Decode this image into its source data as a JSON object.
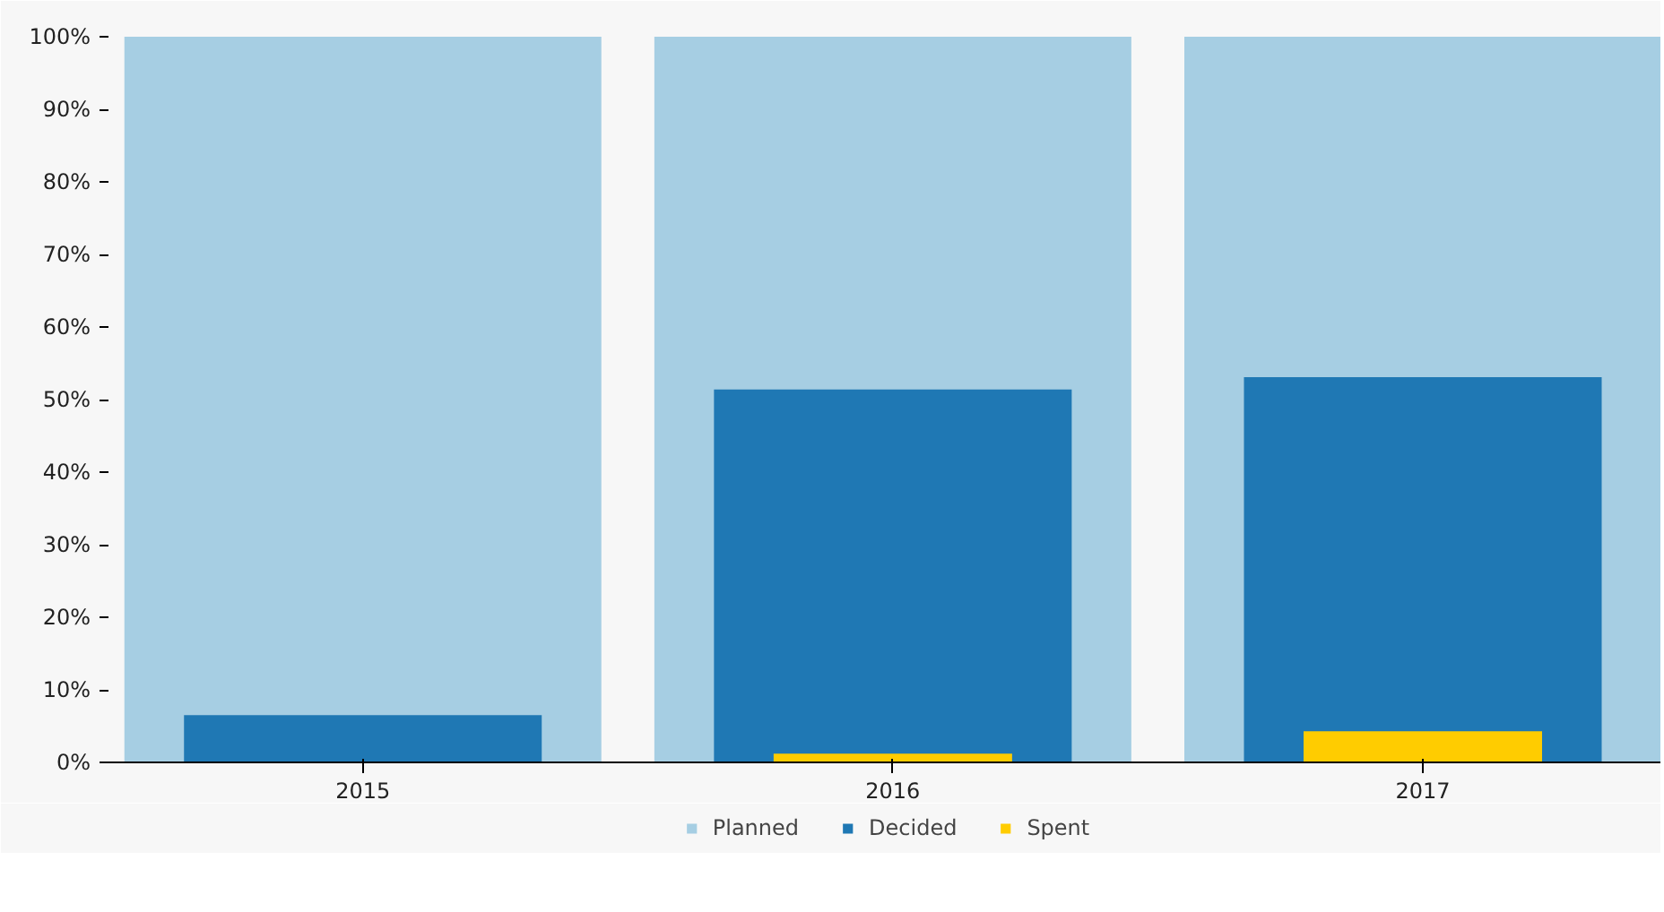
{
  "chart_data": {
    "type": "bar",
    "categories": [
      "2015",
      "2016",
      "2017"
    ],
    "series": [
      {
        "name": "Planned",
        "color": "#a6cee3",
        "values": [
          100,
          100,
          100
        ]
      },
      {
        "name": "Decided",
        "color": "#1f78b4",
        "values": [
          6.5,
          51.4,
          53.1
        ]
      },
      {
        "name": "Spent",
        "color": "#ffcc00",
        "values": [
          0,
          1.2,
          4.3
        ]
      }
    ],
    "ylim": [
      0,
      100
    ],
    "yticks": [
      {
        "value": 0,
        "label": "0%"
      },
      {
        "value": 10,
        "label": "10%"
      },
      {
        "value": 20,
        "label": "20%"
      },
      {
        "value": 30,
        "label": "30%"
      },
      {
        "value": 40,
        "label": "40%"
      },
      {
        "value": 50,
        "label": "50%"
      },
      {
        "value": 60,
        "label": "60%"
      },
      {
        "value": 70,
        "label": "70%"
      },
      {
        "value": 80,
        "label": "80%"
      },
      {
        "value": 90,
        "label": "90%"
      },
      {
        "value": 100,
        "label": "100%"
      }
    ],
    "grid": false,
    "legend": "bottom"
  }
}
